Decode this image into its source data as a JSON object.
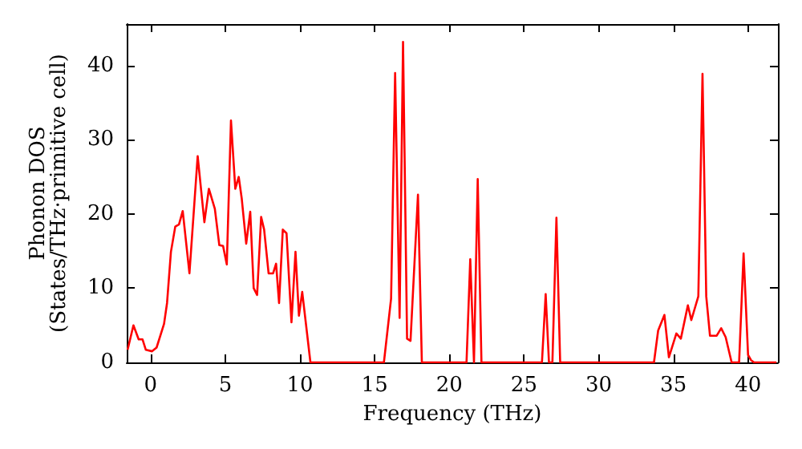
{
  "chart_data": {
    "type": "line",
    "xlabel": "Frequency (THz)",
    "ylabel": "Phonon DOS\n(States/THz·primitive cell)",
    "series": [
      {
        "color": "#ff0000",
        "x": [
          -1.54,
          -1.15,
          -0.8,
          -0.54,
          -0.32,
          0.1,
          0.4,
          0.9,
          1.1,
          1.36,
          1.65,
          1.9,
          2.15,
          2.6,
          3.15,
          3.6,
          3.9,
          4.3,
          4.6,
          4.85,
          5.1,
          5.38,
          5.67,
          5.9,
          6.1,
          6.4,
          6.67,
          6.9,
          7.13,
          7.4,
          7.6,
          7.9,
          8.2,
          8.4,
          8.6,
          8.85,
          9.1,
          9.43,
          9.7,
          9.93,
          10.15,
          10.7,
          15.62,
          16.1,
          16.37,
          16.67,
          16.9,
          17.17,
          17.4,
          17.9,
          18.16,
          21.15,
          21.4,
          21.65,
          21.9,
          22.15,
          26.2,
          26.45,
          26.67,
          26.9,
          27.17,
          27.42,
          33.7,
          33.98,
          34.4,
          34.7,
          35.2,
          35.5,
          35.97,
          36.2,
          36.67,
          36.95,
          37.2,
          37.45,
          37.9,
          38.2,
          38.5,
          38.9,
          39.4,
          39.7,
          40.0,
          40.2,
          40.4,
          41.9
        ],
        "values": [
          1.7,
          5.0,
          3.1,
          3.1,
          1.7,
          1.5,
          2.0,
          5.2,
          8.0,
          14.9,
          18.3,
          18.6,
          20.4,
          12.0,
          27.8,
          18.9,
          23.4,
          20.7,
          15.8,
          15.7,
          13.2,
          32.6,
          23.4,
          25.0,
          22.1,
          16.0,
          20.3,
          10.0,
          9.1,
          19.6,
          17.9,
          12.0,
          12.0,
          13.3,
          8.0,
          17.9,
          17.4,
          5.4,
          14.9,
          6.3,
          9.5,
          0,
          0,
          8.6,
          39.0,
          6.0,
          43.2,
          3.2,
          2.9,
          22.6,
          0,
          0,
          13.9,
          0,
          24.7,
          0,
          0,
          9.2,
          0,
          0,
          19.5,
          0,
          0,
          4.3,
          6.4,
          0.7,
          3.9,
          3.2,
          7.7,
          5.7,
          8.9,
          38.9,
          8.9,
          3.6,
          3.6,
          4.6,
          3.4,
          0,
          0,
          14.7,
          1.0,
          0.3,
          0,
          0
        ]
      }
    ],
    "xlim": [
      -1.6,
      42
    ],
    "xticks": [
      0,
      5,
      10,
      15,
      20,
      25,
      30,
      35,
      40
    ],
    "ylim": [
      0,
      45.6
    ],
    "yticks": [
      0,
      10,
      20,
      30,
      40
    ],
    "grid": false,
    "marker": "none",
    "line_style": "solid"
  }
}
